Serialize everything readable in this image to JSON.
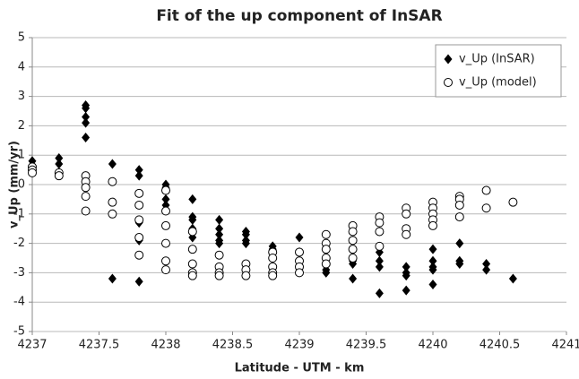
{
  "chart_data": {
    "type": "scatter",
    "title": "Fit of the up component of InSAR",
    "x_label": "Latitude - UTM - km",
    "y_label": "v_Up (mm/yr)",
    "xlim": [
      4237,
      4241
    ],
    "xticks": [
      4237,
      4237.5,
      4238,
      4238.5,
      4239,
      4239.5,
      4240,
      4240.5,
      4241
    ],
    "ylim": [
      -5,
      5
    ],
    "yticks": [
      -5,
      -4,
      -3,
      -2,
      -1,
      0,
      1,
      2,
      3,
      4,
      5
    ],
    "grid": true,
    "legend": "top-right",
    "series": [
      {
        "name": "v_Up (InSAR)",
        "color": "#000000",
        "marker": "diamond",
        "x": [
          4237,
          4237.2,
          4237.2,
          4237.4,
          4237.4,
          4237.4,
          4237.4,
          4237.4,
          4237.6,
          4237.6,
          4237.8,
          4237.8,
          4237.8,
          4237.8,
          4237.8,
          4238,
          4238,
          4238,
          4238,
          4238.2,
          4238.2,
          4238.2,
          4238.2,
          4238.2,
          4238.4,
          4238.4,
          4238.4,
          4238.4,
          4238.4,
          4238.6,
          4238.6,
          4238.6,
          4238.6,
          4238.8,
          4238.8,
          4239,
          4239,
          4239.2,
          4239.2,
          4239.4,
          4239.4,
          4239.4,
          4239.6,
          4239.6,
          4239.6,
          4239.6,
          4239.8,
          4239.8,
          4239.8,
          4239.8,
          4240,
          4240,
          4240,
          4240,
          4240,
          4240.2,
          4240.2,
          4240.2,
          4240.4,
          4240.4,
          4240.6
        ],
        "y": [
          0.8,
          0.9,
          0.7,
          2.7,
          2.6,
          2.3,
          2.1,
          1.6,
          0.7,
          -3.2,
          0.5,
          0.3,
          -1.3,
          -1.9,
          -3.3,
          0,
          -0.1,
          -0.5,
          -0.7,
          -0.5,
          -1.1,
          -1.2,
          -1.5,
          -1.8,
          -1.2,
          -1.5,
          -1.7,
          -1.9,
          -2.0,
          -1.6,
          -1.7,
          -1.9,
          -2.0,
          -2.1,
          -2.2,
          -1.8,
          -2.3,
          -2.9,
          -3.0,
          -2.6,
          -2.7,
          -3.2,
          -2.3,
          -2.6,
          -2.8,
          -3.7,
          -2.8,
          -3.0,
          -3.1,
          -3.6,
          -2.2,
          -2.6,
          -2.8,
          -2.9,
          -3.4,
          -2.0,
          -2.6,
          -2.7,
          -2.7,
          -2.9,
          -3.2
        ]
      },
      {
        "name": "v_Up (model)",
        "color": "#000000",
        "marker": "circle",
        "x": [
          4237,
          4237,
          4237,
          4237.2,
          4237.2,
          4237.4,
          4237.4,
          4237.4,
          4237.4,
          4237.4,
          4237.6,
          4237.6,
          4237.6,
          4237.8,
          4237.8,
          4237.8,
          4237.8,
          4237.8,
          4238,
          4238,
          4238,
          4238,
          4238,
          4238,
          4238.2,
          4238.2,
          4238.2,
          4238.2,
          4238.2,
          4238.4,
          4238.4,
          4238.4,
          4238.4,
          4238.6,
          4238.6,
          4238.6,
          4238.8,
          4238.8,
          4238.8,
          4238.8,
          4238.8,
          4239,
          4239,
          4239,
          4239,
          4239.2,
          4239.2,
          4239.2,
          4239.2,
          4239.2,
          4239.4,
          4239.4,
          4239.4,
          4239.4,
          4239.4,
          4239.6,
          4239.6,
          4239.6,
          4239.6,
          4239.8,
          4239.8,
          4239.8,
          4239.8,
          4240,
          4240,
          4240,
          4240,
          4240,
          4240.2,
          4240.2,
          4240.2,
          4240.2,
          4240.4,
          4240.4,
          4240.6
        ],
        "y": [
          0.6,
          0.5,
          0.4,
          0.4,
          0.3,
          0.3,
          0.1,
          -0.1,
          -0.4,
          -0.9,
          0.1,
          -0.6,
          -1.0,
          -0.3,
          -0.7,
          -1.2,
          -1.8,
          -2.4,
          -0.2,
          -0.9,
          -1.4,
          -2.0,
          -2.6,
          -2.9,
          -1.6,
          -2.2,
          -2.7,
          -3.0,
          -3.1,
          -2.4,
          -2.8,
          -3.0,
          -3.1,
          -2.7,
          -2.9,
          -3.1,
          -2.3,
          -2.5,
          -2.8,
          -3.0,
          -3.1,
          -2.3,
          -2.6,
          -2.8,
          -3.0,
          -1.7,
          -2.0,
          -2.2,
          -2.5,
          -2.7,
          -1.4,
          -1.6,
          -1.9,
          -2.2,
          -2.5,
          -1.1,
          -1.3,
          -1.6,
          -2.1,
          -0.8,
          -1.0,
          -1.5,
          -1.7,
          -0.6,
          -0.8,
          -1.0,
          -1.2,
          -1.4,
          -0.4,
          -0.5,
          -0.7,
          -1.1,
          -0.2,
          -0.8,
          -0.6
        ]
      }
    ]
  }
}
